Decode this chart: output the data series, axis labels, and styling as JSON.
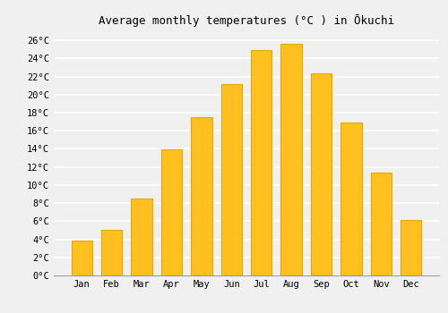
{
  "title": "Average monthly temperatures (°C ) in Ōkuchi",
  "months": [
    "Jan",
    "Feb",
    "Mar",
    "Apr",
    "May",
    "Jun",
    "Jul",
    "Aug",
    "Sep",
    "Oct",
    "Nov",
    "Dec"
  ],
  "values": [
    3.9,
    5.0,
    8.5,
    13.9,
    17.5,
    21.2,
    24.9,
    25.6,
    22.4,
    16.9,
    11.4,
    6.1
  ],
  "bar_color": "#FFC020",
  "bar_edge_color": "#E8A800",
  "ylim": [
    0,
    27
  ],
  "ytick_values": [
    0,
    2,
    4,
    6,
    8,
    10,
    12,
    14,
    16,
    18,
    20,
    22,
    24,
    26
  ],
  "background_color": "#f0f0f0",
  "grid_color": "#ffffff",
  "title_fontsize": 9,
  "tick_fontsize": 7.5
}
